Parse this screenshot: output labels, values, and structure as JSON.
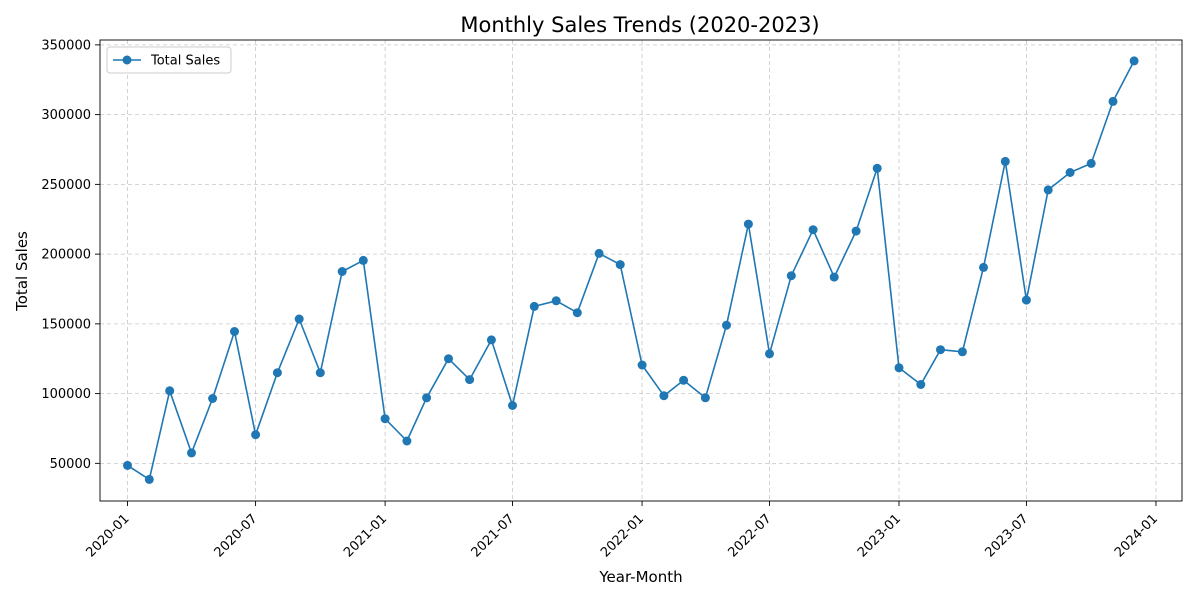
{
  "chart_data": {
    "type": "line",
    "title": "Monthly Sales Trends (2020-2023)",
    "xlabel": "Year-Month",
    "ylabel": "Total Sales",
    "x_ticks": [
      "2020-01",
      "2020-07",
      "2021-01",
      "2021-07",
      "2022-01",
      "2022-07",
      "2023-01",
      "2023-07",
      "2024-01"
    ],
    "y_ticks": [
      50000,
      100000,
      150000,
      200000,
      250000,
      300000,
      350000
    ],
    "ylim": [
      23000,
      353500
    ],
    "xlim": [
      "2019-11-23",
      "2024-02-07"
    ],
    "grid": true,
    "legend_position": "top-left",
    "series": [
      {
        "name": "Total Sales",
        "color": "#1f77b4",
        "marker": "circle",
        "x": [
          "2020-01-01",
          "2020-02-01",
          "2020-03-01",
          "2020-04-01",
          "2020-05-01",
          "2020-06-01",
          "2020-07-01",
          "2020-08-01",
          "2020-09-01",
          "2020-10-01",
          "2020-11-01",
          "2020-12-01",
          "2021-01-01",
          "2021-02-01",
          "2021-03-01",
          "2021-04-01",
          "2021-05-01",
          "2021-06-01",
          "2021-07-01",
          "2021-08-01",
          "2021-09-01",
          "2021-10-01",
          "2021-11-01",
          "2021-12-01",
          "2022-01-01",
          "2022-02-01",
          "2022-03-01",
          "2022-04-01",
          "2022-05-01",
          "2022-06-01",
          "2022-07-01",
          "2022-08-01",
          "2022-09-01",
          "2022-10-01",
          "2022-11-01",
          "2022-12-01",
          "2023-01-01",
          "2023-02-01",
          "2023-03-01",
          "2023-04-01",
          "2023-05-01",
          "2023-06-01",
          "2023-07-01",
          "2023-08-01",
          "2023-09-01",
          "2023-10-01",
          "2023-11-01",
          "2023-12-01"
        ],
        "values": [
          48500,
          38500,
          102000,
          57500,
          96500,
          144500,
          70500,
          115000,
          153500,
          115000,
          187500,
          195500,
          82000,
          66000,
          97000,
          125000,
          110000,
          138500,
          91500,
          162500,
          166500,
          158000,
          200500,
          192500,
          120500,
          98500,
          109500,
          97000,
          149000,
          221500,
          128500,
          184500,
          217500,
          183500,
          216500,
          261500,
          118500,
          106500,
          131500,
          130000,
          190500,
          266500,
          167000,
          246000,
          258500,
          265000,
          309500,
          338500
        ]
      }
    ]
  }
}
